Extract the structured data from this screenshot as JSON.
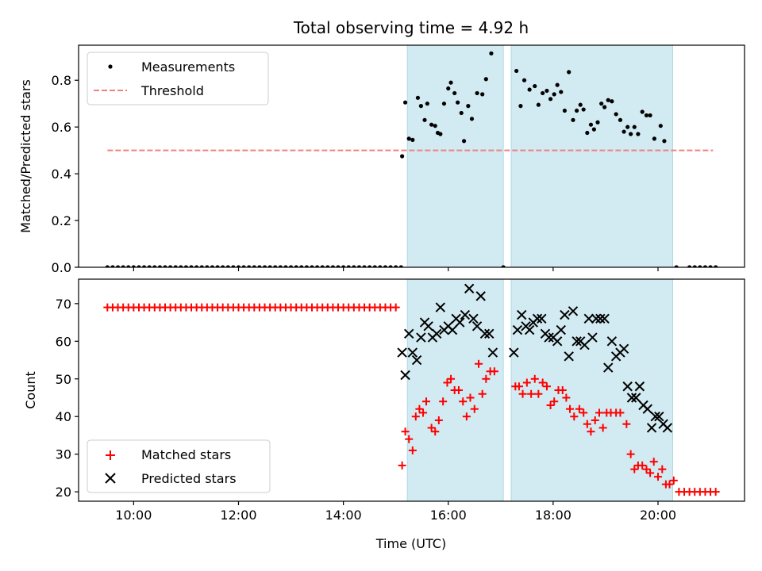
{
  "chart_data": {
    "type": "scatter",
    "title": "Total observing time = 4.92 h",
    "colors": {
      "measurements": "#000000",
      "threshold": "#f08080",
      "matched": "#ff0000",
      "predicted": "#000000",
      "shade": "#add8e6"
    },
    "shaded_intervals": [
      [
        15.22,
        17.05
      ],
      [
        17.2,
        20.28
      ]
    ],
    "x_ticks": [
      {
        "value": 10,
        "label": "10:00"
      },
      {
        "value": 12,
        "label": "12:00"
      },
      {
        "value": 14,
        "label": "14:00"
      },
      {
        "value": 16,
        "label": "16:00"
      },
      {
        "value": 18,
        "label": "18:00"
      },
      {
        "value": 20,
        "label": "20:00"
      }
    ],
    "xlabel": "Time (UTC)",
    "xlim": [
      8.95,
      21.65
    ],
    "top": {
      "ylabel": "Matched/Predicted stars",
      "ylim": [
        0,
        0.95
      ],
      "y_ticks": [
        "0.0",
        "0.2",
        "0.4",
        "0.6",
        "0.8"
      ],
      "legend": {
        "position": "upper-left",
        "entries": [
          "Measurements",
          "Threshold"
        ]
      },
      "threshold": {
        "value": 0.5,
        "x_range": [
          9.5,
          21.05
        ]
      },
      "measurements_zero_times": [
        9.5,
        9.6,
        9.7,
        9.8,
        9.9,
        10.0,
        10.1,
        10.2,
        10.3,
        10.4,
        10.5,
        10.6,
        10.7,
        10.8,
        10.9,
        11.0,
        11.1,
        11.2,
        11.3,
        11.4,
        11.5,
        11.6,
        11.7,
        11.8,
        11.9,
        12.0,
        12.1,
        12.2,
        12.3,
        12.4,
        12.5,
        12.6,
        12.7,
        12.8,
        12.9,
        13.0,
        13.1,
        13.2,
        13.3,
        13.4,
        13.5,
        13.6,
        13.7,
        13.8,
        13.9,
        14.0,
        14.1,
        14.2,
        14.3,
        14.4,
        14.5,
        14.6,
        14.7,
        14.8,
        14.9,
        15.0,
        15.1,
        17.05,
        20.35,
        20.6,
        20.7,
        20.8,
        20.9,
        21.0,
        21.1
      ],
      "measurements": [
        [
          15.12,
          0.475
        ],
        [
          15.18,
          0.705
        ],
        [
          15.25,
          0.55
        ],
        [
          15.32,
          0.545
        ],
        [
          15.42,
          0.725
        ],
        [
          15.48,
          0.69
        ],
        [
          15.55,
          0.63
        ],
        [
          15.6,
          0.7
        ],
        [
          15.68,
          0.61
        ],
        [
          15.75,
          0.605
        ],
        [
          15.8,
          0.575
        ],
        [
          15.85,
          0.57
        ],
        [
          15.92,
          0.7
        ],
        [
          16.0,
          0.765
        ],
        [
          16.05,
          0.79
        ],
        [
          16.12,
          0.745
        ],
        [
          16.18,
          0.705
        ],
        [
          16.25,
          0.66
        ],
        [
          16.3,
          0.54
        ],
        [
          16.38,
          0.69
        ],
        [
          16.45,
          0.635
        ],
        [
          16.55,
          0.745
        ],
        [
          16.65,
          0.74
        ],
        [
          16.72,
          0.805
        ],
        [
          16.82,
          0.915
        ],
        [
          17.3,
          0.84
        ],
        [
          17.38,
          0.69
        ],
        [
          17.45,
          0.8
        ],
        [
          17.55,
          0.76
        ],
        [
          17.65,
          0.775
        ],
        [
          17.72,
          0.695
        ],
        [
          17.8,
          0.745
        ],
        [
          17.88,
          0.755
        ],
        [
          17.95,
          0.72
        ],
        [
          18.02,
          0.74
        ],
        [
          18.08,
          0.78
        ],
        [
          18.15,
          0.75
        ],
        [
          18.22,
          0.67
        ],
        [
          18.3,
          0.835
        ],
        [
          18.38,
          0.63
        ],
        [
          18.45,
          0.67
        ],
        [
          18.52,
          0.695
        ],
        [
          18.58,
          0.675
        ],
        [
          18.65,
          0.575
        ],
        [
          18.72,
          0.61
        ],
        [
          18.78,
          0.59
        ],
        [
          18.85,
          0.62
        ],
        [
          18.92,
          0.7
        ],
        [
          18.98,
          0.685
        ],
        [
          19.05,
          0.715
        ],
        [
          19.12,
          0.71
        ],
        [
          19.2,
          0.655
        ],
        [
          19.28,
          0.63
        ],
        [
          19.35,
          0.58
        ],
        [
          19.42,
          0.6
        ],
        [
          19.48,
          0.57
        ],
        [
          19.55,
          0.6
        ],
        [
          19.62,
          0.57
        ],
        [
          19.7,
          0.665
        ],
        [
          19.78,
          0.65
        ],
        [
          19.85,
          0.65
        ],
        [
          19.93,
          0.55
        ],
        [
          20.05,
          0.605
        ],
        [
          20.12,
          0.54
        ]
      ]
    },
    "bottom": {
      "ylabel": "Count",
      "ylim": [
        17.5,
        76.5
      ],
      "y_ticks": [
        20,
        30,
        40,
        50,
        60,
        70
      ],
      "legend": {
        "position": "lower-left",
        "entries": [
          "Matched stars",
          "Predicted stars"
        ]
      },
      "matched_flat": {
        "value": 69,
        "times": [
          9.5,
          9.6,
          9.7,
          9.8,
          9.9,
          10.0,
          10.1,
          10.2,
          10.3,
          10.4,
          10.5,
          10.6,
          10.7,
          10.8,
          10.9,
          11.0,
          11.1,
          11.2,
          11.3,
          11.4,
          11.5,
          11.6,
          11.7,
          11.8,
          11.9,
          12.0,
          12.1,
          12.2,
          12.3,
          12.4,
          12.5,
          12.6,
          12.7,
          12.8,
          12.9,
          13.0,
          13.1,
          13.2,
          13.3,
          13.4,
          13.5,
          13.6,
          13.7,
          13.8,
          13.9,
          14.0,
          14.1,
          14.2,
          14.3,
          14.4,
          14.5,
          14.6,
          14.7,
          14.8,
          14.9,
          15.0
        ]
      },
      "matched_tail": {
        "value": 20,
        "times": [
          20.4,
          20.5,
          20.6,
          20.7,
          20.8,
          20.9,
          21.0,
          21.1
        ]
      },
      "matched": [
        [
          15.12,
          27
        ],
        [
          15.18,
          36
        ],
        [
          15.25,
          34
        ],
        [
          15.32,
          31
        ],
        [
          15.38,
          40
        ],
        [
          15.45,
          42
        ],
        [
          15.52,
          41
        ],
        [
          15.58,
          44
        ],
        [
          15.68,
          37
        ],
        [
          15.75,
          36
        ],
        [
          15.82,
          39
        ],
        [
          15.9,
          44
        ],
        [
          15.98,
          49
        ],
        [
          16.05,
          50
        ],
        [
          16.12,
          47
        ],
        [
          16.2,
          47
        ],
        [
          16.28,
          44
        ],
        [
          16.35,
          40
        ],
        [
          16.42,
          45
        ],
        [
          16.5,
          42
        ],
        [
          16.58,
          54
        ],
        [
          16.65,
          46
        ],
        [
          16.72,
          50
        ],
        [
          16.8,
          52
        ],
        [
          16.88,
          52
        ],
        [
          17.28,
          48
        ],
        [
          17.35,
          48
        ],
        [
          17.42,
          46
        ],
        [
          17.5,
          49
        ],
        [
          17.58,
          46
        ],
        [
          17.65,
          50
        ],
        [
          17.72,
          46
        ],
        [
          17.8,
          49
        ],
        [
          17.88,
          48
        ],
        [
          17.95,
          43
        ],
        [
          18.02,
          44
        ],
        [
          18.1,
          47
        ],
        [
          18.18,
          47
        ],
        [
          18.25,
          45
        ],
        [
          18.32,
          42
        ],
        [
          18.4,
          40
        ],
        [
          18.5,
          42
        ],
        [
          18.58,
          41
        ],
        [
          18.65,
          38
        ],
        [
          18.72,
          36
        ],
        [
          18.8,
          39
        ],
        [
          18.88,
          41
        ],
        [
          18.95,
          37
        ],
        [
          19.02,
          41
        ],
        [
          19.1,
          41
        ],
        [
          19.2,
          41
        ],
        [
          19.28,
          41
        ],
        [
          19.4,
          38
        ],
        [
          19.48,
          30
        ],
        [
          19.55,
          26
        ],
        [
          19.62,
          27
        ],
        [
          19.7,
          27
        ],
        [
          19.78,
          26
        ],
        [
          19.85,
          25
        ],
        [
          19.92,
          28
        ],
        [
          20.0,
          24
        ],
        [
          20.08,
          26
        ],
        [
          20.15,
          22
        ],
        [
          20.22,
          22
        ],
        [
          20.3,
          23
        ]
      ],
      "predicted": [
        [
          15.12,
          57
        ],
        [
          15.18,
          51
        ],
        [
          15.25,
          62
        ],
        [
          15.32,
          57
        ],
        [
          15.4,
          55
        ],
        [
          15.48,
          61
        ],
        [
          15.55,
          65
        ],
        [
          15.62,
          64
        ],
        [
          15.7,
          61
        ],
        [
          15.78,
          62
        ],
        [
          15.85,
          69
        ],
        [
          15.92,
          63
        ],
        [
          16.0,
          64
        ],
        [
          16.08,
          63
        ],
        [
          16.15,
          66
        ],
        [
          16.22,
          65
        ],
        [
          16.32,
          67
        ],
        [
          16.4,
          74
        ],
        [
          16.48,
          66
        ],
        [
          16.55,
          64
        ],
        [
          16.62,
          72
        ],
        [
          16.7,
          62
        ],
        [
          16.78,
          62
        ],
        [
          16.85,
          57
        ],
        [
          17.25,
          57
        ],
        [
          17.32,
          63
        ],
        [
          17.4,
          67
        ],
        [
          17.48,
          64
        ],
        [
          17.55,
          63
        ],
        [
          17.62,
          65
        ],
        [
          17.7,
          66
        ],
        [
          17.78,
          66
        ],
        [
          17.85,
          62
        ],
        [
          17.92,
          61
        ],
        [
          18.0,
          61
        ],
        [
          18.08,
          60
        ],
        [
          18.15,
          63
        ],
        [
          18.22,
          67
        ],
        [
          18.3,
          56
        ],
        [
          18.38,
          68
        ],
        [
          18.45,
          60
        ],
        [
          18.52,
          60
        ],
        [
          18.6,
          59
        ],
        [
          18.68,
          66
        ],
        [
          18.75,
          61
        ],
        [
          18.82,
          66
        ],
        [
          18.9,
          66
        ],
        [
          18.98,
          66
        ],
        [
          19.05,
          53
        ],
        [
          19.12,
          60
        ],
        [
          19.2,
          56
        ],
        [
          19.28,
          57
        ],
        [
          19.35,
          58
        ],
        [
          19.42,
          48
        ],
        [
          19.5,
          45
        ],
        [
          19.58,
          45
        ],
        [
          19.65,
          48
        ],
        [
          19.72,
          43
        ],
        [
          19.8,
          42
        ],
        [
          19.88,
          37
        ],
        [
          19.95,
          40
        ],
        [
          20.02,
          40
        ],
        [
          20.1,
          38
        ],
        [
          20.18,
          37
        ]
      ]
    }
  }
}
